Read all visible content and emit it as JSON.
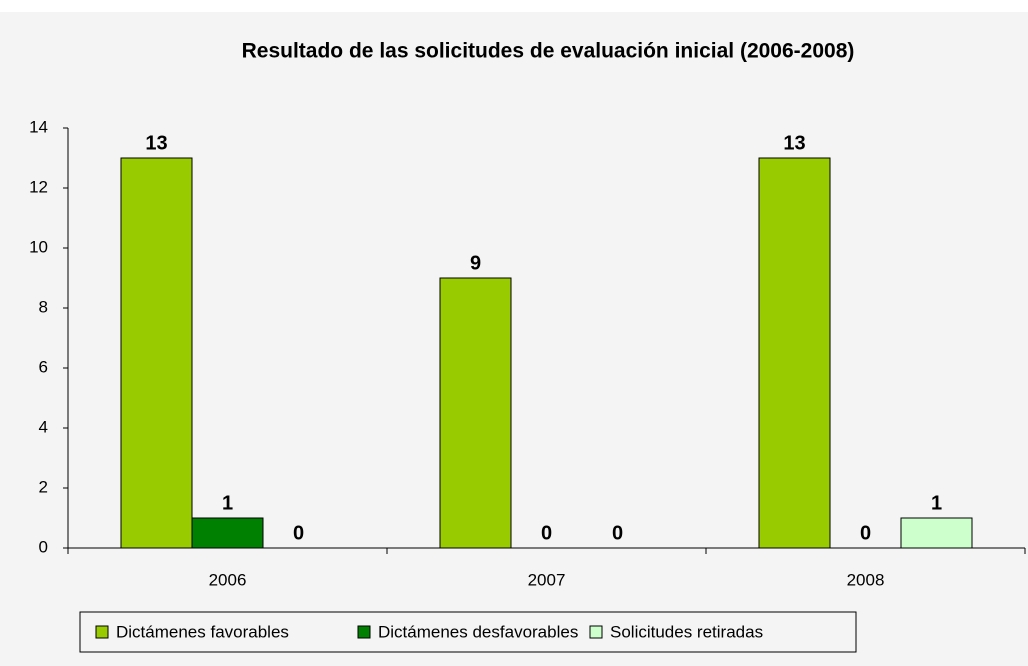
{
  "chart_data": {
    "type": "bar",
    "title": "Resultado de las solicitudes de evaluación inicial (2006-2008)",
    "categories": [
      "2006",
      "2007",
      "2008"
    ],
    "series": [
      {
        "name": "Dictámenes favorables",
        "color": "#99cc00",
        "values": [
          13,
          9,
          13
        ]
      },
      {
        "name": "Dictámenes desfavorables",
        "color": "#008000",
        "values": [
          1,
          0,
          0
        ]
      },
      {
        "name": "Solicitudes retiradas",
        "color": "#ccffcc",
        "values": [
          0,
          0,
          1
        ]
      }
    ],
    "ylim": [
      0,
      14
    ],
    "yticks": [
      0,
      2,
      4,
      6,
      8,
      10,
      12,
      14
    ],
    "grid": false,
    "legend": "bottom"
  }
}
